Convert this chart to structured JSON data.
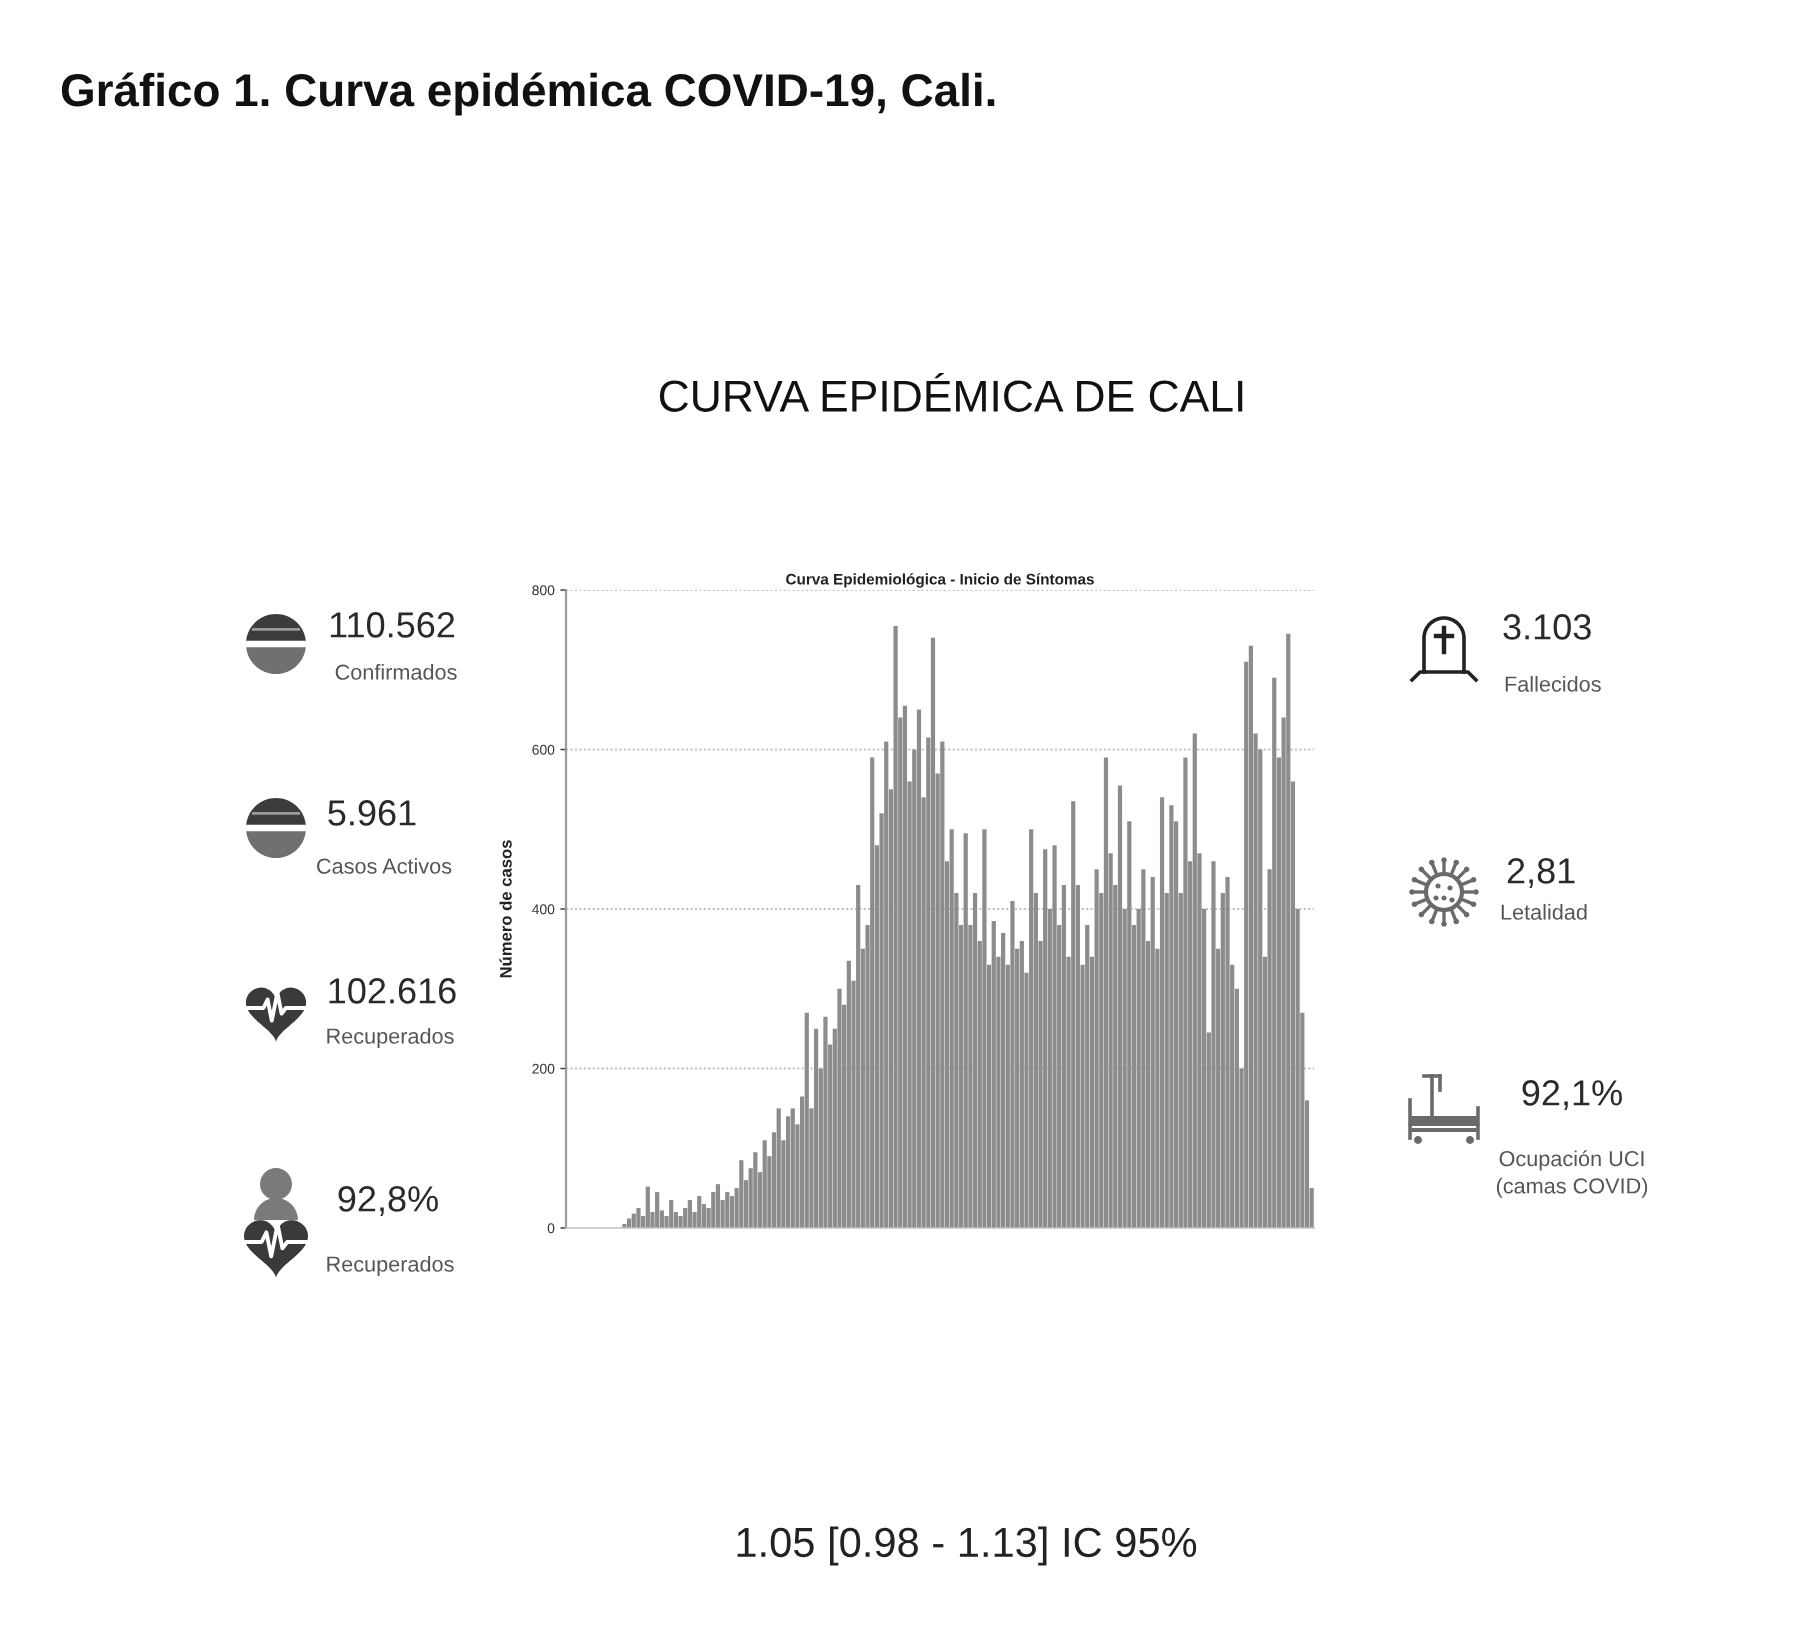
{
  "chart_data": [
    {
      "type": "other",
      "title": "Gráfico 1. Curva epidémica COVID-19, Cali.",
      "subtitle": "CURVA EPIDÉMICA DE CALI"
    },
    {
      "type": "other",
      "annotations": [
        "110.562",
        "Confirmados",
        "5.961",
        "Casos Activos",
        "102.616",
        "Recuperados",
        "92,8%",
        "Recuperados"
      ]
    },
    {
      "type": "bar",
      "title": "Curva Epidemiológica - Inicio de Síntomas",
      "ylabel": "Número de casos",
      "categories": [
        null,
        null,
        null,
        null,
        null,
        null,
        null,
        null,
        null,
        null,
        null,
        null,
        null,
        null,
        null,
        null,
        null,
        null,
        null,
        null,
        null,
        null,
        null,
        null,
        null,
        null,
        null,
        null,
        null,
        null,
        null,
        null,
        null,
        null,
        null,
        null,
        null,
        null,
        null,
        null,
        null,
        null,
        null,
        null,
        null,
        null,
        null,
        null,
        null,
        null,
        null,
        null,
        null,
        null,
        null,
        null,
        null,
        null,
        null,
        null,
        null,
        null,
        null,
        null,
        null,
        null,
        null,
        null,
        null,
        null,
        null,
        null,
        null,
        null,
        null,
        null,
        null,
        null,
        null,
        null,
        null,
        null,
        null,
        null,
        null,
        null,
        null,
        null,
        null,
        null,
        null,
        null,
        null,
        null,
        null,
        null,
        null,
        null,
        null,
        null,
        null,
        null,
        null,
        null,
        null,
        null,
        null,
        null,
        null,
        null,
        null,
        null,
        null,
        null,
        null,
        null,
        null,
        null,
        null,
        null,
        null,
        null,
        null,
        null,
        null,
        null,
        null,
        null,
        null,
        null,
        null,
        null,
        null,
        null,
        null,
        null,
        null,
        null,
        null,
        null,
        null,
        null,
        null,
        null,
        null,
        null,
        null,
        null,
        null,
        null,
        null,
        null,
        null,
        null,
        null,
        null,
        null,
        null,
        null,
        null
      ],
      "values": [
        0,
        0,
        0,
        0,
        0,
        0,
        0,
        0,
        0,
        0,
        0,
        0,
        5,
        12,
        18,
        25,
        15,
        52,
        20,
        45,
        22,
        15,
        35,
        20,
        15,
        25,
        35,
        20,
        40,
        30,
        25,
        45,
        55,
        35,
        45,
        40,
        50,
        85,
        60,
        75,
        95,
        70,
        110,
        90,
        120,
        150,
        110,
        140,
        150,
        130,
        165,
        270,
        150,
        250,
        200,
        265,
        230,
        250,
        300,
        280,
        335,
        310,
        430,
        350,
        380,
        590,
        480,
        520,
        610,
        550,
        755,
        640,
        655,
        560,
        600,
        650,
        540,
        615,
        740,
        570,
        610,
        460,
        500,
        420,
        380,
        495,
        380,
        420,
        360,
        500,
        330,
        385,
        340,
        370,
        330,
        410,
        350,
        360,
        320,
        500,
        420,
        360,
        475,
        400,
        480,
        380,
        430,
        340,
        535,
        430,
        330,
        380,
        340,
        450,
        420,
        590,
        470,
        430,
        555,
        400,
        510,
        380,
        400,
        450,
        360,
        440,
        350,
        540,
        420,
        530,
        510,
        420,
        590,
        460,
        620,
        470,
        400,
        245,
        460,
        350,
        420,
        440,
        330,
        300,
        200,
        710,
        730,
        620,
        600,
        340,
        450,
        690,
        590,
        640,
        745,
        560,
        400,
        270,
        160,
        50
      ],
      "color": "#8c8c8c",
      "ylim": [
        0,
        800
      ],
      "yticks": [
        0,
        200,
        400,
        600,
        800
      ],
      "grid": "y",
      "annotations": [
        "1.05 [0.98 - 1.13] IC 95%"
      ]
    },
    {
      "type": "other",
      "annotations": [
        "3.103",
        "Fallecidos",
        "2,81",
        "Letalidad",
        "92,1%",
        "Ocupación UCI\n(camas COVID)"
      ]
    }
  ]
}
